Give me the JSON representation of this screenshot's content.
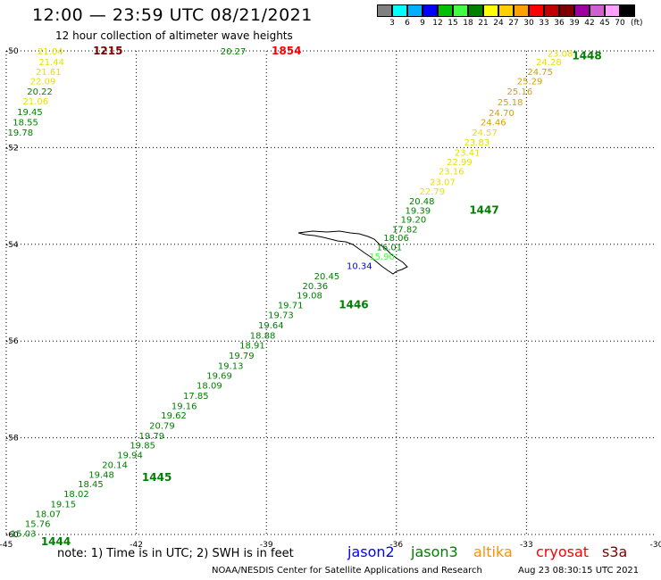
{
  "header": {
    "title": "12:00 — 23:59 UTC 08/21/2021",
    "subtitle": "12 hour collection of altimeter wave heights"
  },
  "legend": {
    "colors": [
      "#808080",
      "#00ffff",
      "#00b0ff",
      "#0000ff",
      "#00c000",
      "#40ff40",
      "#008000",
      "#ffff00",
      "#ffd000",
      "#ffa000",
      "#ff0000",
      "#c00000",
      "#800000",
      "#a000a0",
      "#d060d0",
      "#ffa0ff",
      "#000000"
    ],
    "labels": [
      "3",
      "6",
      "9",
      "12",
      "15",
      "18",
      "21",
      "24",
      "27",
      "30",
      "33",
      "36",
      "39",
      "42",
      "45",
      "70"
    ],
    "unit": "(ft)"
  },
  "chart_data": {
    "type": "scatter",
    "xlim": [
      -45,
      -30
    ],
    "ylim": [
      -60,
      -50
    ],
    "xticks": [
      "-45",
      "-42",
      "-39",
      "-36",
      "-33",
      "-30"
    ],
    "yticks": [
      "-50",
      "-52",
      "-54",
      "-56",
      "-58",
      "-60"
    ],
    "grid": "dotted",
    "points": [
      {
        "lon": -44.28,
        "lat": -50.0,
        "text": "21.04",
        "color": "#e8e000"
      },
      {
        "lon": -44.25,
        "lat": -50.22,
        "text": "21.44",
        "color": "#e8e000"
      },
      {
        "lon": -44.32,
        "lat": -50.42,
        "text": "21.61",
        "color": "#e8e000"
      },
      {
        "lon": -44.45,
        "lat": -50.62,
        "text": "22.09",
        "color": "#e8e000"
      },
      {
        "lon": -44.52,
        "lat": -50.83,
        "text": "20.22",
        "color": "#008000"
      },
      {
        "lon": -44.62,
        "lat": -51.03,
        "text": "21.06",
        "color": "#e8e000"
      },
      {
        "lon": -44.75,
        "lat": -51.25,
        "text": "19.45",
        "color": "#008000"
      },
      {
        "lon": -44.85,
        "lat": -51.47,
        "text": "18.55",
        "color": "#008000"
      },
      {
        "lon": -44.97,
        "lat": -51.68,
        "text": "19.78",
        "color": "#008000"
      },
      {
        "lon": -40.06,
        "lat": -50.0,
        "text": "20.27",
        "color": "#008000"
      },
      {
        "lon": -32.52,
        "lat": -50.05,
        "text": "23.08",
        "color": "#e8e000"
      },
      {
        "lon": -32.78,
        "lat": -50.22,
        "text": "24.28",
        "color": "#e8e000"
      },
      {
        "lon": -32.98,
        "lat": -50.42,
        "text": "24.75",
        "color": "#d8a000"
      },
      {
        "lon": -33.22,
        "lat": -50.62,
        "text": "25.29",
        "color": "#d8a000"
      },
      {
        "lon": -33.45,
        "lat": -50.83,
        "text": "25.16",
        "color": "#d8a000"
      },
      {
        "lon": -33.67,
        "lat": -51.05,
        "text": "25.18",
        "color": "#d8a000"
      },
      {
        "lon": -33.87,
        "lat": -51.27,
        "text": "24.70",
        "color": "#d8a000"
      },
      {
        "lon": -34.06,
        "lat": -51.47,
        "text": "24.46",
        "color": "#d8a000"
      },
      {
        "lon": -34.26,
        "lat": -51.68,
        "text": "24.57",
        "color": "#e8e000"
      },
      {
        "lon": -34.44,
        "lat": -51.88,
        "text": "23.83",
        "color": "#e8e000"
      },
      {
        "lon": -34.66,
        "lat": -52.09,
        "text": "23.41",
        "color": "#e8e000"
      },
      {
        "lon": -34.84,
        "lat": -52.29,
        "text": "22.99",
        "color": "#e8e000"
      },
      {
        "lon": -35.03,
        "lat": -52.48,
        "text": "23.16",
        "color": "#e8e000"
      },
      {
        "lon": -35.23,
        "lat": -52.7,
        "text": "23.07",
        "color": "#e8e000"
      },
      {
        "lon": -35.47,
        "lat": -52.9,
        "text": "22.79",
        "color": "#e8e000"
      },
      {
        "lon": -35.71,
        "lat": -53.1,
        "text": "20.48",
        "color": "#008000"
      },
      {
        "lon": -35.8,
        "lat": -53.29,
        "text": "19.39",
        "color": "#008000"
      },
      {
        "lon": -35.9,
        "lat": -53.48,
        "text": "19.20",
        "color": "#008000"
      },
      {
        "lon": -36.1,
        "lat": -53.68,
        "text": "17.82",
        "color": "#008000"
      },
      {
        "lon": -36.3,
        "lat": -53.86,
        "text": "18.06",
        "color": "#008000"
      },
      {
        "lon": -36.46,
        "lat": -54.05,
        "text": "16.01",
        "color": "#008000"
      },
      {
        "lon": -36.63,
        "lat": -54.24,
        "text": "15.90",
        "color": "#40ff40"
      },
      {
        "lon": -37.15,
        "lat": -54.44,
        "text": "10.34",
        "color": "#0000ff"
      },
      {
        "lon": -37.9,
        "lat": -54.65,
        "text": "20.45",
        "color": "#008000"
      },
      {
        "lon": -38.17,
        "lat": -54.85,
        "text": "20.36",
        "color": "#008000"
      },
      {
        "lon": -38.3,
        "lat": -55.05,
        "text": "19.08",
        "color": "#008000"
      },
      {
        "lon": -38.74,
        "lat": -55.25,
        "text": "19.71",
        "color": "#008000"
      },
      {
        "lon": -38.96,
        "lat": -55.45,
        "text": "19.73",
        "color": "#008000"
      },
      {
        "lon": -39.19,
        "lat": -55.66,
        "text": "19.64",
        "color": "#008000"
      },
      {
        "lon": -39.38,
        "lat": -55.88,
        "text": "18.88",
        "color": "#008000"
      },
      {
        "lon": -39.62,
        "lat": -56.08,
        "text": "18.91",
        "color": "#008000"
      },
      {
        "lon": -39.87,
        "lat": -56.29,
        "text": "19.79",
        "color": "#008000"
      },
      {
        "lon": -40.12,
        "lat": -56.5,
        "text": "19.13",
        "color": "#008000"
      },
      {
        "lon": -40.38,
        "lat": -56.71,
        "text": "19.69",
        "color": "#008000"
      },
      {
        "lon": -40.61,
        "lat": -56.91,
        "text": "18.09",
        "color": "#008000"
      },
      {
        "lon": -40.92,
        "lat": -57.12,
        "text": "17.85",
        "color": "#008000"
      },
      {
        "lon": -41.19,
        "lat": -57.33,
        "text": "19.16",
        "color": "#008000"
      },
      {
        "lon": -41.43,
        "lat": -57.53,
        "text": "19.62",
        "color": "#008000"
      },
      {
        "lon": -41.7,
        "lat": -57.74,
        "text": "20.79",
        "color": "#008000"
      },
      {
        "lon": -41.94,
        "lat": -57.95,
        "text": "19.79",
        "color": "#008000"
      },
      {
        "lon": -42.15,
        "lat": -58.15,
        "text": "19.85",
        "color": "#008000"
      },
      {
        "lon": -42.44,
        "lat": -58.35,
        "text": "19.94",
        "color": "#008000"
      },
      {
        "lon": -42.79,
        "lat": -58.55,
        "text": "20.14",
        "color": "#008000"
      },
      {
        "lon": -43.1,
        "lat": -58.75,
        "text": "19.48",
        "color": "#008000"
      },
      {
        "lon": -43.35,
        "lat": -58.95,
        "text": "18.45",
        "color": "#008000"
      },
      {
        "lon": -43.68,
        "lat": -59.15,
        "text": "18.02",
        "color": "#008000"
      },
      {
        "lon": -43.98,
        "lat": -59.36,
        "text": "19.15",
        "color": "#008000"
      },
      {
        "lon": -44.33,
        "lat": -59.57,
        "text": "18.07",
        "color": "#008000"
      },
      {
        "lon": -44.57,
        "lat": -59.77,
        "text": "15.76",
        "color": "#008000"
      },
      {
        "lon": -44.9,
        "lat": -59.97,
        "text": "15.03",
        "color": "#008000"
      }
    ],
    "time_labels": [
      {
        "lon": -43.0,
        "lat": -50.0,
        "text": "1215",
        "color": "#800000"
      },
      {
        "lon": -38.88,
        "lat": -50.0,
        "text": "1854",
        "color": "#ff0000"
      },
      {
        "lon": -31.95,
        "lat": -50.1,
        "text": "1448",
        "color": "#008000"
      },
      {
        "lon": -34.32,
        "lat": -53.29,
        "text": "1447",
        "color": "#008000"
      },
      {
        "lon": -37.33,
        "lat": -55.25,
        "text": "1446",
        "color": "#008000"
      },
      {
        "lon": -41.87,
        "lat": -58.82,
        "text": "1445",
        "color": "#008000"
      },
      {
        "lon": -44.2,
        "lat": -60.15,
        "text": "1444",
        "color": "#008000"
      }
    ]
  },
  "footer": {
    "note": "note: 1) Time is in UTC; 2) SWH is in feet",
    "satellites": [
      {
        "name": "jason2",
        "color": "#0000ff"
      },
      {
        "name": "jason3",
        "color": "#008000"
      },
      {
        "name": "altika",
        "color": "#ff9000"
      },
      {
        "name": "cryosat",
        "color": "#ff0000"
      },
      {
        "name": "s3a",
        "color": "#800000"
      }
    ],
    "credit": "NOAA/NESDIS Center for Satellite Applications and Research",
    "timestamp": "Aug 23 08:30:15 UTC 2021"
  }
}
